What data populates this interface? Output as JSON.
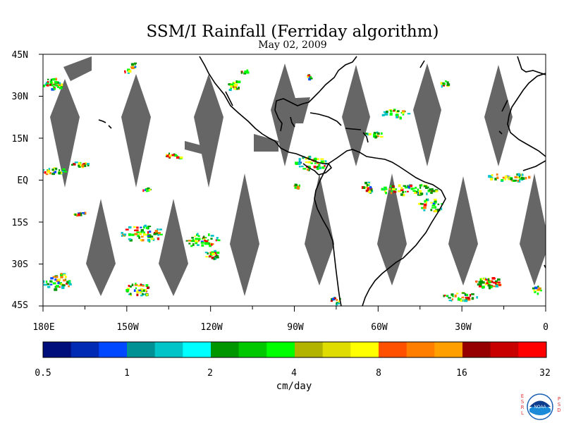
{
  "title": "SSM/I Rainfall (Ferriday algorithm)",
  "subtitle": "May 02, 2009",
  "map": {
    "lat_labels": [
      "45N",
      "30N",
      "15N",
      "EQ",
      "15S",
      "30S",
      "45S"
    ],
    "lon_labels": [
      "180E",
      "150W",
      "120W",
      "90W",
      "60W",
      "30W",
      "0"
    ],
    "lat_range": [
      -45,
      45
    ],
    "lon_range": [
      -180,
      0
    ],
    "no_data_color": "#666666",
    "coastline_color": "#000000"
  },
  "colorbar": {
    "colors": [
      "#000e7c",
      "#002ab3",
      "#0048ff",
      "#009194",
      "#00c4c8",
      "#00ffff",
      "#009600",
      "#00c800",
      "#00ff00",
      "#b2b200",
      "#dedc00",
      "#ffff00",
      "#ff5000",
      "#ff7e00",
      "#ffa000",
      "#960000",
      "#c80000",
      "#ff0000"
    ],
    "tick_labels": [
      "0.5",
      "1",
      "2",
      "4",
      "8",
      "16",
      "32"
    ],
    "unit": "cm/day"
  },
  "logo": {
    "left_letters": [
      "E",
      "S",
      "R",
      "L"
    ],
    "right_letters": [
      "P",
      "S",
      "D"
    ],
    "center_text": "NOAA"
  }
}
